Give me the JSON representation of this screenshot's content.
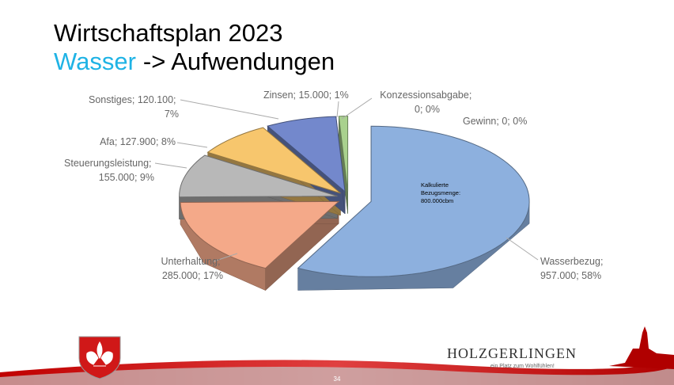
{
  "slide": {
    "title": "Wirtschaftsplan 2023",
    "subtitle_highlight": "Wasser",
    "subtitle_rest": "-> Aufwendungen",
    "logo_name": "HOLZGERLINGEN",
    "logo_tagline": "ein Platz zum Wohlfühlen!",
    "page_number": "34"
  },
  "chart_data": {
    "type": "pie",
    "categories": [
      "Wasserbezug",
      "Unterhaltung",
      "Steuerungsleistung",
      "Afa",
      "Sonstiges",
      "Zinsen",
      "Konzessionsabgabe",
      "Gewinn"
    ],
    "values": [
      957000,
      285000,
      155000,
      127900,
      120100,
      15000,
      0,
      0
    ],
    "value_labels": [
      "957.000",
      "285.000",
      "155.000",
      "127.900",
      "120.100",
      "15.000",
      "0",
      "0"
    ],
    "percents": [
      58,
      17,
      9,
      8,
      7,
      1,
      0,
      0
    ],
    "percent_labels": [
      "58%",
      "17%",
      "9%",
      "8%",
      "7%",
      "1%",
      "0%",
      "0%"
    ],
    "label_separator": "; ",
    "colors": [
      "#8db0de",
      "#f4a989",
      "#b8b8b8",
      "#f7c66d",
      "#7388cc",
      "#a9d18e",
      "#9e480e",
      "#636363"
    ],
    "annotation": [
      "Kalkulierte",
      "Bezugsmenge:",
      "800.000cbm"
    ]
  }
}
